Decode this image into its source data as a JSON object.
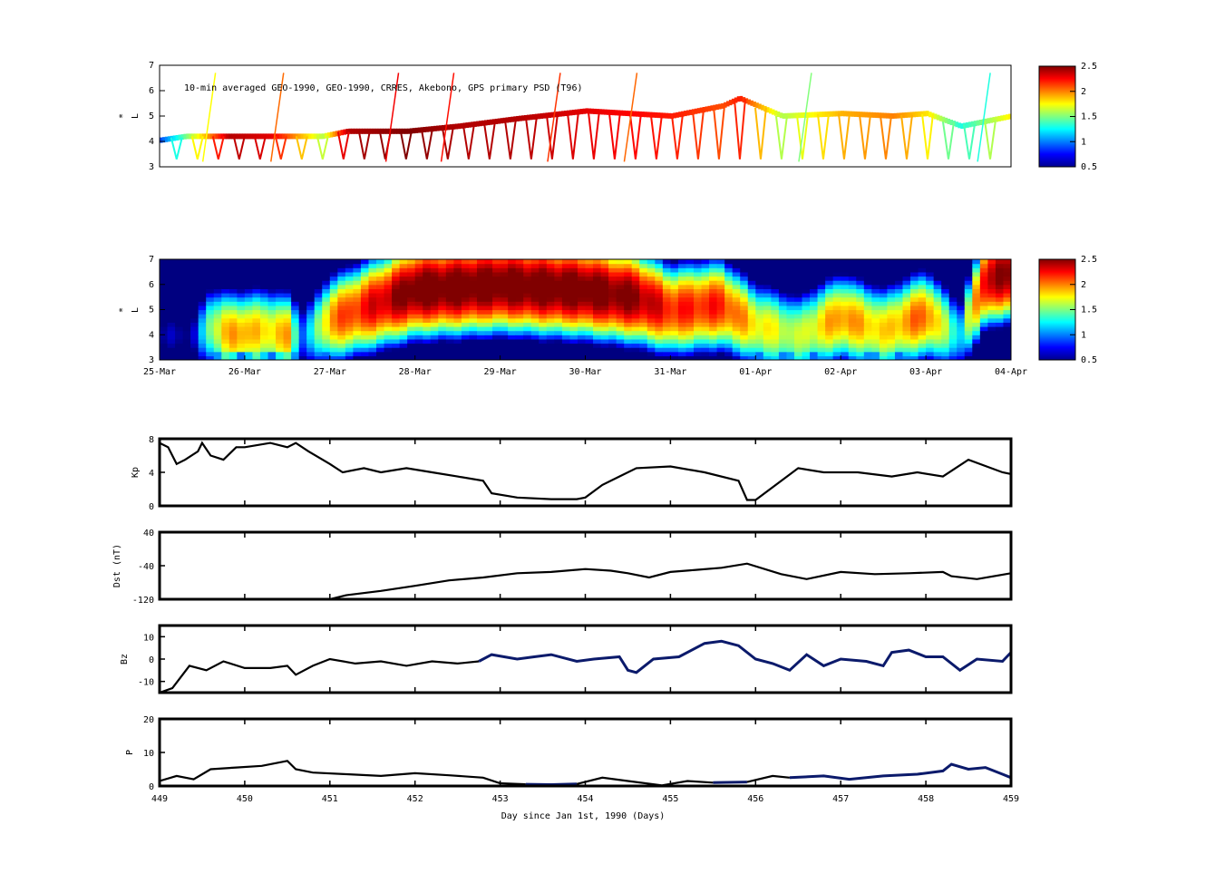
{
  "chart_data": [
    {
      "type": "scatter",
      "title": "10-min averaged GEO-1990, GEO-1990, CRRES, Akebono, GPS  primary PSD (T96)",
      "ylabel": "L*",
      "ylabel_main": "L",
      "ylabel_sup": "*",
      "ylim": [
        3,
        7
      ],
      "yticks": [
        "3",
        "4",
        "5",
        "6",
        "7"
      ],
      "xlim": [
        449,
        459
      ],
      "colorbar": {
        "min": 0.5,
        "max": 2.5,
        "ticks": [
          "0.5",
          "1",
          "1.5",
          "2",
          "2.5"
        ],
        "colormap": "jet"
      },
      "tracks": [
        {
          "day": 449.0,
          "L": 4.05,
          "psd": 0.9
        },
        {
          "day": 449.3,
          "L": 4.2,
          "psd": 1.5
        },
        {
          "day": 449.8,
          "L": 4.2,
          "psd": 2.4
        },
        {
          "day": 450.3,
          "L": 4.2,
          "psd": 2.3
        },
        {
          "day": 450.9,
          "L": 4.2,
          "psd": 1.6
        },
        {
          "day": 451.2,
          "L": 4.4,
          "psd": 2.4
        },
        {
          "day": 451.9,
          "L": 4.4,
          "psd": 2.5
        },
        {
          "day": 452.5,
          "L": 4.6,
          "psd": 2.4
        },
        {
          "day": 453.2,
          "L": 4.9,
          "psd": 2.4
        },
        {
          "day": 454.0,
          "L": 5.2,
          "psd": 2.3
        },
        {
          "day": 455.0,
          "L": 5.0,
          "psd": 2.2
        },
        {
          "day": 455.6,
          "L": 5.4,
          "psd": 2.1
        },
        {
          "day": 455.8,
          "L": 5.7,
          "psd": 2.2
        },
        {
          "day": 456.3,
          "L": 5.0,
          "psd": 1.6
        },
        {
          "day": 457.0,
          "L": 5.1,
          "psd": 1.9
        },
        {
          "day": 457.6,
          "L": 5.0,
          "psd": 2.0
        },
        {
          "day": 458.0,
          "L": 5.1,
          "psd": 1.8
        },
        {
          "day": 458.4,
          "L": 4.6,
          "psd": 1.3
        },
        {
          "day": 459.0,
          "L": 5.0,
          "psd": 1.8
        }
      ]
    },
    {
      "type": "heatmap",
      "ylabel": "L*",
      "ylabel_main": "L",
      "ylabel_sup": "*",
      "ylim": [
        3,
        7
      ],
      "yticks": [
        "3",
        "4",
        "5",
        "6",
        "7"
      ],
      "xlim": [
        449,
        459
      ],
      "date_ticks": [
        "25-Mar",
        "26-Mar",
        "27-Mar",
        "28-Mar",
        "29-Mar",
        "30-Mar",
        "31-Mar",
        "01-Apr",
        "02-Apr",
        "03-Apr",
        "04-Apr"
      ],
      "colorbar": {
        "min": 0.5,
        "max": 2.5,
        "ticks": [
          "0.5",
          "1",
          "1.5",
          "2",
          "2.5"
        ],
        "colormap": "jet"
      },
      "time_profile": [
        {
          "day": 449.0,
          "psd": 0.55,
          "lpeak": 4.0
        },
        {
          "day": 449.4,
          "psd": 0.6,
          "lpeak": 4.0
        },
        {
          "day": 449.6,
          "psd": 1.6,
          "lpeak": 4.3
        },
        {
          "day": 449.9,
          "psd": 2.0,
          "lpeak": 4.0
        },
        {
          "day": 450.2,
          "psd": 1.8,
          "lpeak": 4.2
        },
        {
          "day": 450.5,
          "psd": 1.9,
          "lpeak": 4.0
        },
        {
          "day": 450.7,
          "psd": 0.9,
          "lpeak": 4.0
        },
        {
          "day": 451.0,
          "psd": 2.0,
          "lpeak": 4.6
        },
        {
          "day": 451.5,
          "psd": 2.3,
          "lpeak": 5.2
        },
        {
          "day": 452.0,
          "psd": 2.6,
          "lpeak": 5.8
        },
        {
          "day": 453.0,
          "psd": 2.6,
          "lpeak": 6.0
        },
        {
          "day": 454.0,
          "psd": 2.6,
          "lpeak": 5.8
        },
        {
          "day": 454.6,
          "psd": 2.5,
          "lpeak": 5.5
        },
        {
          "day": 455.0,
          "psd": 2.2,
          "lpeak": 5.0
        },
        {
          "day": 455.6,
          "psd": 2.2,
          "lpeak": 5.2
        },
        {
          "day": 456.0,
          "psd": 1.8,
          "lpeak": 4.4
        },
        {
          "day": 456.5,
          "psd": 1.6,
          "lpeak": 4.0
        },
        {
          "day": 457.0,
          "psd": 2.0,
          "lpeak": 4.7
        },
        {
          "day": 457.5,
          "psd": 1.8,
          "lpeak": 4.2
        },
        {
          "day": 458.0,
          "psd": 2.1,
          "lpeak": 4.8
        },
        {
          "day": 458.4,
          "psd": 1.2,
          "lpeak": 4.0
        },
        {
          "day": 458.7,
          "psd": 2.4,
          "lpeak": 6.2
        },
        {
          "day": 459.0,
          "psd": 2.5,
          "lpeak": 6.5
        }
      ]
    },
    {
      "type": "line",
      "ylabel": "Kp",
      "ylim": [
        0,
        8
      ],
      "yticks": [
        "0",
        "4",
        "8"
      ],
      "xlim": [
        449,
        459
      ],
      "series": [
        {
          "color": "#000000",
          "x": [
            449.0,
            449.1,
            449.2,
            449.3,
            449.45,
            449.5,
            449.6,
            449.75,
            449.9,
            450.0,
            450.3,
            450.5,
            450.6,
            450.75,
            451.0,
            451.15,
            451.4,
            451.6,
            451.9,
            452.2,
            452.5,
            452.8,
            452.9,
            453.2,
            453.6,
            453.9,
            454.0,
            454.2,
            454.4,
            454.6,
            455.0,
            455.4,
            455.8,
            455.9,
            456.0,
            456.5,
            456.8,
            457.2,
            457.6,
            457.9,
            458.2,
            458.5,
            458.9,
            459.0
          ],
          "y": [
            7.5,
            7.0,
            5.0,
            5.5,
            6.5,
            7.5,
            6.0,
            5.5,
            7.0,
            7.0,
            7.5,
            7.0,
            7.5,
            6.5,
            5.0,
            4.0,
            4.5,
            4.0,
            4.5,
            4.0,
            3.5,
            3.0,
            1.5,
            1.0,
            0.8,
            0.8,
            1.0,
            2.5,
            3.5,
            4.5,
            4.7,
            4.0,
            3.0,
            0.7,
            0.7,
            4.5,
            4.0,
            4.0,
            3.5,
            4.0,
            3.5,
            5.5,
            4.0,
            3.8
          ]
        }
      ]
    },
    {
      "type": "line",
      "ylabel": "Dst (nT)",
      "ylim": [
        -120,
        40
      ],
      "yticks": [
        "-120",
        "-40",
        "40"
      ],
      "xlim": [
        449,
        459
      ],
      "series": [
        {
          "color": "#000000",
          "x": [
            449.0,
            449.8,
            450.2,
            450.6,
            450.9,
            451.2,
            451.6,
            452.0,
            452.4,
            452.8,
            453.2,
            453.6,
            454.0,
            454.3,
            454.5,
            454.75,
            455.0,
            455.3,
            455.6,
            455.9,
            456.3,
            456.6,
            457.0,
            457.4,
            457.8,
            458.2,
            458.3,
            458.6,
            459.0
          ],
          "y": [
            -135,
            -140,
            -130,
            -130,
            -125,
            -110,
            -100,
            -88,
            -75,
            -68,
            -58,
            -55,
            -48,
            -52,
            -58,
            -68,
            -55,
            -50,
            -45,
            -35,
            -60,
            -72,
            -55,
            -60,
            -58,
            -55,
            -65,
            -72,
            -58
          ]
        }
      ]
    },
    {
      "type": "line",
      "ylabel": "Bz",
      "ylim": [
        -15,
        15
      ],
      "yticks": [
        "-10",
        "0",
        "10"
      ],
      "xlim": [
        449,
        459
      ],
      "series": [
        {
          "color": "#000000",
          "x": [
            449.0,
            449.15,
            449.35,
            449.55,
            449.75,
            450.0,
            450.3,
            450.5,
            450.6,
            450.8,
            451.0,
            451.3,
            451.6,
            451.9,
            452.2,
            452.5,
            452.75
          ],
          "y": [
            -15,
            -13,
            -3,
            -5,
            -1,
            -4,
            -4,
            -3,
            -7,
            -3,
            0,
            -2,
            -1,
            -3,
            -1,
            -2,
            -1
          ]
        },
        {
          "color": "#0b1a6b",
          "x": [
            452.75,
            452.9,
            453.2,
            453.4,
            453.6,
            453.9,
            454.1,
            454.4,
            454.5,
            454.6,
            454.8,
            455.1,
            455.4,
            455.6,
            455.8,
            456.0,
            456.2,
            456.4,
            456.6,
            456.8,
            457.0,
            457.3,
            457.5,
            457.6,
            457.8,
            458.0,
            458.2,
            458.4,
            458.6,
            458.9,
            459.0
          ],
          "y": [
            -1,
            2,
            0,
            1,
            2,
            -1,
            0,
            1,
            -5,
            -6,
            0,
            1,
            7,
            8,
            6,
            0,
            -2,
            -5,
            2,
            -3,
            0,
            -1,
            -3,
            3,
            4,
            1,
            1,
            -5,
            0,
            -1,
            3
          ]
        }
      ]
    },
    {
      "type": "line",
      "ylabel": "P",
      "ylim": [
        0,
        20
      ],
      "yticks": [
        "0",
        "10",
        "20"
      ],
      "xlim": [
        449,
        459
      ],
      "xlabel": "Day since Jan 1st, 1990 (Days)",
      "xticks": [
        "449",
        "450",
        "451",
        "452",
        "453",
        "454",
        "455",
        "456",
        "457",
        "458",
        "459"
      ],
      "series": [
        {
          "color": "#000000",
          "x": [
            449.0,
            449.2,
            449.4,
            449.6,
            449.9,
            450.2,
            450.5,
            450.6,
            450.8,
            451.2,
            451.6,
            452.0,
            452.4,
            452.8,
            453.0,
            453.3
          ],
          "y": [
            1.5,
            3.0,
            2.0,
            5.0,
            5.5,
            6.0,
            7.5,
            5.0,
            4.0,
            3.5,
            3.0,
            3.8,
            3.2,
            2.5,
            0.8,
            0.5
          ]
        },
        {
          "color": "#0b1a6b",
          "x": [
            453.3,
            453.6,
            453.9
          ],
          "y": [
            0.5,
            0.4,
            0.6
          ]
        },
        {
          "color": "#000000",
          "x": [
            453.9,
            454.2,
            454.5,
            454.9,
            455.2,
            455.5
          ],
          "y": [
            0.6,
            2.5,
            1.5,
            0.2,
            1.5,
            1.0
          ]
        },
        {
          "color": "#0b1a6b",
          "x": [
            455.5,
            455.9
          ],
          "y": [
            1.0,
            1.2
          ]
        },
        {
          "color": "#000000",
          "x": [
            455.9,
            456.2,
            456.4
          ],
          "y": [
            1.2,
            3.0,
            2.5
          ]
        },
        {
          "color": "#0b1a6b",
          "x": [
            456.4,
            456.8,
            457.1,
            457.5,
            457.9,
            458.2,
            458.3,
            458.5,
            458.7,
            458.9,
            459.0
          ],
          "y": [
            2.5,
            3.0,
            2.0,
            3.0,
            3.5,
            4.5,
            6.5,
            5.0,
            5.5,
            3.5,
            2.5
          ]
        }
      ]
    }
  ]
}
